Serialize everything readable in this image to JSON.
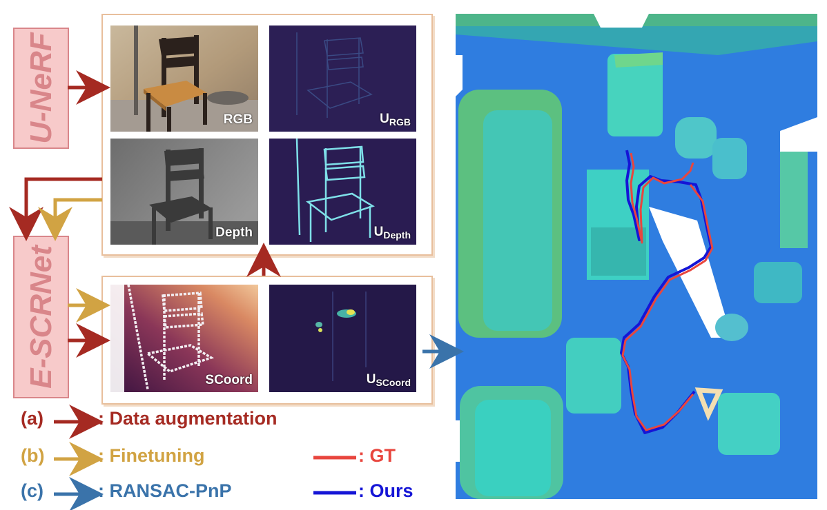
{
  "labels": {
    "u_nerf": "U-NeRF",
    "e_scrnet": "E-SCRNet"
  },
  "panels": {
    "rgb": {
      "label": "RGB"
    },
    "u_rgb": {
      "label": "U",
      "sub": "RGB"
    },
    "depth": {
      "label": "Depth"
    },
    "u_depth": {
      "label": "U",
      "sub": "Depth"
    },
    "scoord": {
      "label": "SCoord"
    },
    "u_scoord": {
      "label": "U",
      "sub": "SCoord"
    }
  },
  "legend": {
    "a": {
      "tag": "(a)",
      "text": ": Data augmentation",
      "color": "#a52a22"
    },
    "b": {
      "tag": "(b)",
      "text": ": Finetuning",
      "color": "#d1a343"
    },
    "c": {
      "tag": "(c)",
      "text": ": RANSAC-PnP",
      "color": "#3a73aa"
    },
    "gt": {
      "text": ": GT",
      "color": "#e8463e"
    },
    "ours": {
      "text": ": Ours",
      "color": "#1515d6"
    }
  },
  "colors": {
    "augmentation": "#a52a22",
    "finetuning": "#d1a343",
    "ransac": "#3a73aa",
    "gt": "#e8463e",
    "ours": "#1515d6"
  }
}
